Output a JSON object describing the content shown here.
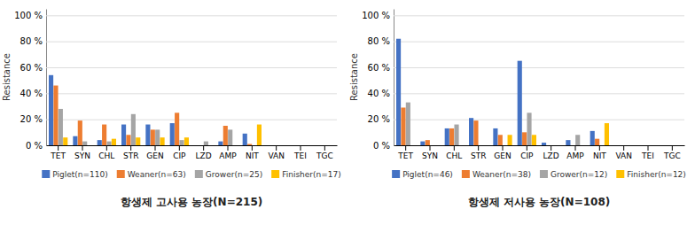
{
  "chart_data": [
    {
      "type": "bar",
      "title": "항생제 고사용 농장(N=215)",
      "y_label": "Resistance",
      "categories": [
        "TET",
        "SYN",
        "CHL",
        "STR",
        "GEN",
        "CIP",
        "LZD",
        "AMP",
        "NIT",
        "VAN",
        "TEI",
        "TGC"
      ],
      "series": [
        {
          "name": "Piglet(n=110)",
          "color": "#4472c4",
          "values": [
            54,
            7,
            4,
            16,
            16,
            17,
            0,
            3,
            9,
            0,
            0,
            0
          ]
        },
        {
          "name": "Weaner(n=63)",
          "color": "#ed7d31",
          "values": [
            46,
            19,
            16,
            8,
            12,
            25,
            0,
            15,
            1,
            0,
            0,
            0
          ]
        },
        {
          "name": "Grower(n=25)",
          "color": "#a5a5a5",
          "values": [
            28,
            3,
            3,
            24,
            12,
            4,
            3,
            12,
            0,
            0,
            0,
            0
          ]
        },
        {
          "name": "Finisher(n=17)",
          "color": "#ffc000",
          "values": [
            6,
            0,
            5,
            6,
            6,
            6,
            0,
            0,
            16,
            0,
            0,
            0
          ]
        }
      ],
      "ylim": [
        0,
        105
      ],
      "yticks": [
        {
          "value": 0,
          "label": "0 %"
        },
        {
          "value": 20,
          "label": "20 %"
        },
        {
          "value": 40,
          "label": "40 %"
        },
        {
          "value": 60,
          "label": "60 %"
        },
        {
          "value": 80,
          "label": "80 %"
        },
        {
          "value": 100,
          "label": "100 %"
        }
      ],
      "grid": true,
      "legend": "bottom"
    },
    {
      "type": "bar",
      "title": "항생제 저사용 농장(N=108)",
      "y_label": "Resistance",
      "categories": [
        "TET",
        "SYN",
        "CHL",
        "STR",
        "GEN",
        "CIP",
        "LZD",
        "AMP",
        "NIT",
        "VAN",
        "TEI",
        "TGC"
      ],
      "series": [
        {
          "name": "Piglet(n=46)",
          "color": "#4472c4",
          "values": [
            82,
            3,
            13,
            21,
            13,
            65,
            2,
            4,
            11,
            0,
            0,
            0
          ]
        },
        {
          "name": "Weaner(n=38)",
          "color": "#ed7d31",
          "values": [
            29,
            4,
            13,
            19,
            8,
            10,
            0,
            0,
            5,
            0,
            0,
            0
          ]
        },
        {
          "name": "Grower(n=12)",
          "color": "#a5a5a5",
          "values": [
            33,
            0,
            16,
            0,
            0,
            25,
            0,
            8,
            0,
            0,
            0,
            0
          ]
        },
        {
          "name": "Finisher(n=12)",
          "color": "#ffc000",
          "values": [
            0,
            0,
            0,
            0,
            8,
            8,
            0,
            0,
            17,
            0,
            0,
            0
          ]
        }
      ],
      "ylim": [
        0,
        105
      ],
      "yticks": [
        {
          "value": 0,
          "label": "0 %"
        },
        {
          "value": 20,
          "label": "20 %"
        },
        {
          "value": 40,
          "label": "40 %"
        },
        {
          "value": 60,
          "label": "60 %"
        },
        {
          "value": 80,
          "label": "80 %"
        },
        {
          "value": 100,
          "label": "100 %"
        }
      ],
      "grid": true,
      "legend": "bottom"
    }
  ]
}
